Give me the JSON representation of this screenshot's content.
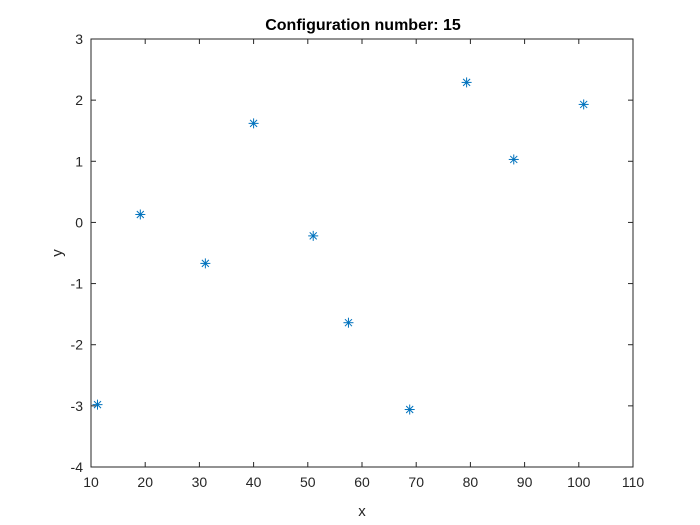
{
  "chart_data": {
    "type": "scatter",
    "title": "Configuration number: 15",
    "xlabel": "x",
    "ylabel": "y",
    "xlim": [
      10,
      110
    ],
    "ylim": [
      -4,
      3
    ],
    "xticks": [
      10,
      20,
      30,
      40,
      50,
      60,
      70,
      80,
      90,
      100,
      110
    ],
    "yticks": [
      -4,
      -3,
      -2,
      -1,
      0,
      1,
      2,
      3
    ],
    "grid": false,
    "marker": "asterisk",
    "color": "#0072BD",
    "series": [
      {
        "points": [
          {
            "x": 11.2,
            "y": -2.98
          },
          {
            "x": 19.1,
            "y": 0.13
          },
          {
            "x": 31.1,
            "y": -0.67
          },
          {
            "x": 40.0,
            "y": 1.62
          },
          {
            "x": 51.0,
            "y": -0.22
          },
          {
            "x": 57.5,
            "y": -1.64
          },
          {
            "x": 68.8,
            "y": -3.06
          },
          {
            "x": 79.3,
            "y": 2.29
          },
          {
            "x": 88.0,
            "y": 1.03
          },
          {
            "x": 100.9,
            "y": 1.93
          }
        ]
      }
    ]
  }
}
